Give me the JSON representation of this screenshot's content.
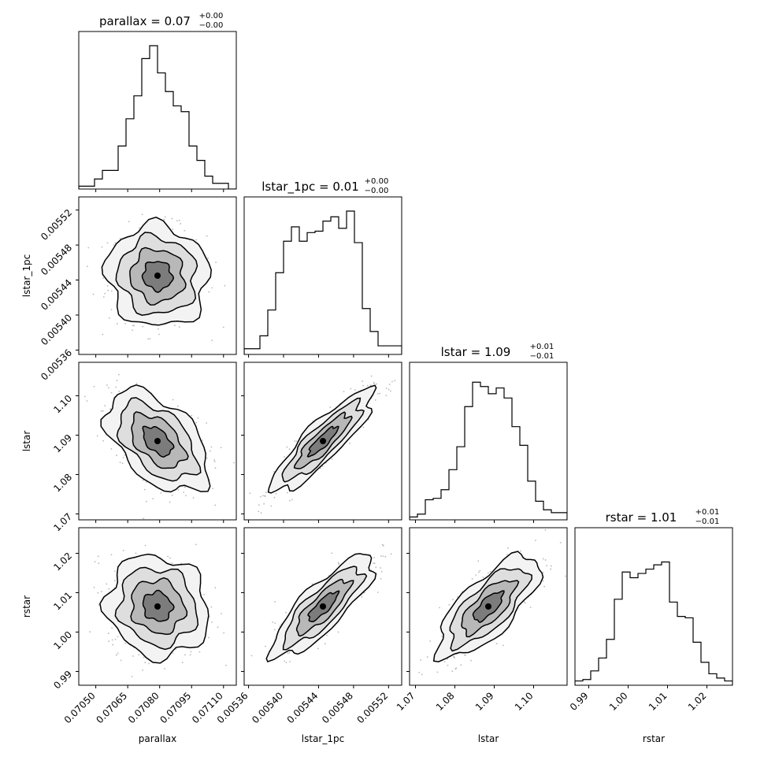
{
  "chart_data": {
    "type": "corner",
    "parameters": [
      "parallax",
      "lstar_1pc",
      "lstar",
      "rstar"
    ],
    "titles": [
      {
        "label": "parallax = 0.07",
        "plus": "+0.00",
        "minus": "−0.00"
      },
      {
        "label": "lstar_1pc = 0.01",
        "plus": "+0.00",
        "minus": "−0.00"
      },
      {
        "label": "lstar = 1.09",
        "plus": "+0.01",
        "minus": "−0.01"
      },
      {
        "label": "rstar = 1.01",
        "plus": "+0.01",
        "minus": "−0.01"
      }
    ],
    "ranges": [
      [
        0.07042,
        0.07116
      ],
      [
        0.005355,
        0.005535
      ],
      [
        1.0685,
        1.1085
      ],
      [
        0.9865,
        1.0265
      ]
    ],
    "ticks": [
      {
        "values": [
          0.0705,
          0.07065,
          0.0708,
          0.07095,
          0.0711
        ],
        "labels": [
          "0.07050",
          "0.07065",
          "0.07080",
          "0.07095",
          "0.07110"
        ]
      },
      {
        "values": [
          0.00536,
          0.0054,
          0.00544,
          0.00548,
          0.00552
        ],
        "labels": [
          "0.00536",
          "0.00540",
          "0.00544",
          "0.00548",
          "0.00552"
        ]
      },
      {
        "values": [
          1.07,
          1.08,
          1.09,
          1.1
        ],
        "labels": [
          "1.07",
          "1.08",
          "1.09",
          "1.10"
        ]
      },
      {
        "values": [
          0.99,
          1.0,
          1.01,
          1.02
        ],
        "labels": [
          "0.99",
          "1.00",
          "1.01",
          "1.02"
        ]
      }
    ],
    "histograms": [
      [
        0.02,
        0.02,
        0.07,
        0.13,
        0.13,
        0.3,
        0.49,
        0.65,
        0.91,
        1.0,
        0.81,
        0.68,
        0.58,
        0.54,
        0.3,
        0.2,
        0.09,
        0.04,
        0.04,
        0.0
      ],
      [
        0.04,
        0.04,
        0.13,
        0.31,
        0.57,
        0.79,
        0.89,
        0.79,
        0.85,
        0.86,
        0.93,
        0.96,
        0.88,
        1.0,
        0.78,
        0.32,
        0.16,
        0.06,
        0.06,
        0.06
      ],
      [
        0.02,
        0.04,
        0.14,
        0.15,
        0.21,
        0.35,
        0.51,
        0.79,
        0.96,
        0.93,
        0.88,
        0.92,
        0.85,
        0.65,
        0.52,
        0.27,
        0.13,
        0.07,
        0.05,
        0.05
      ],
      [
        0.03,
        0.04,
        0.1,
        0.19,
        0.32,
        0.6,
        0.79,
        0.75,
        0.78,
        0.81,
        0.84,
        0.86,
        0.58,
        0.48,
        0.47,
        0.3,
        0.16,
        0.08,
        0.05,
        0.03
      ]
    ],
    "correlations": [
      [
        1,
        -0.05,
        -0.5,
        -0.1
      ],
      [
        -0.05,
        1,
        0.9,
        0.85
      ],
      [
        -0.5,
        0.9,
        1,
        0.75
      ],
      [
        -0.1,
        0.85,
        0.75,
        1
      ]
    ],
    "xlabels": [
      "parallax",
      "lstar_1pc",
      "lstar",
      "rstar"
    ],
    "ylabels": [
      "",
      "lstar_1pc",
      "lstar",
      "rstar"
    ]
  }
}
